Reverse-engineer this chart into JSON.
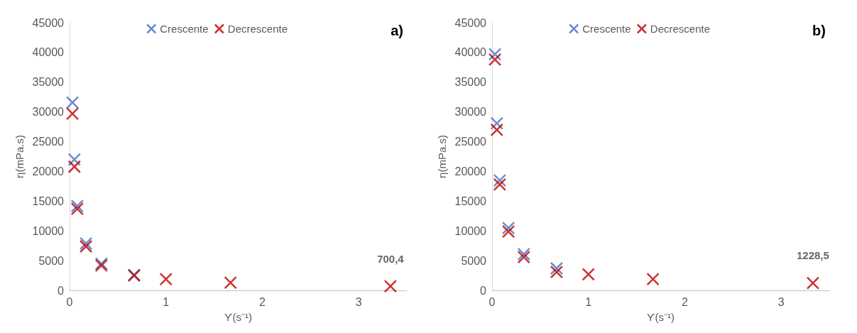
{
  "chart_data": [
    {
      "type": "scatter",
      "title": "a)",
      "xlabel": "ϒ(s⁻¹)",
      "ylabel": "η(mPa.s)",
      "x": [
        0.03,
        0.05,
        0.08,
        0.17,
        0.33,
        0.67,
        1,
        1.67,
        3.33
      ],
      "xlim": [
        0,
        3.5
      ],
      "xticks": [
        0,
        1,
        2,
        3
      ],
      "ylim": [
        0,
        45000
      ],
      "yticks": [
        0,
        5000,
        10000,
        15000,
        20000,
        25000,
        30000,
        35000,
        40000,
        45000
      ],
      "grid": false,
      "legend": "top",
      "marker": "cross",
      "series": [
        {
          "name": "Crescente",
          "color": "#4472c4",
          "values": [
            31600,
            22000,
            14200,
            7900,
            4500,
            2600,
            null,
            null,
            null
          ]
        },
        {
          "name": "Decrescente",
          "color": "#c00000",
          "values": [
            29700,
            20800,
            13700,
            7400,
            4200,
            2500,
            1900,
            1300,
            700.4
          ],
          "value_labels": [
            null,
            null,
            null,
            null,
            null,
            null,
            null,
            null,
            "700,4"
          ]
        }
      ]
    },
    {
      "type": "scatter",
      "title": "b)",
      "xlabel": "ϒ(s⁻¹)",
      "ylabel": "η(mPa.s)",
      "x": [
        0.03,
        0.05,
        0.08,
        0.17,
        0.33,
        0.67,
        1,
        1.67,
        3.33
      ],
      "xlim": [
        0,
        3.5
      ],
      "xticks": [
        0,
        1,
        2,
        3
      ],
      "ylim": [
        0,
        45000
      ],
      "yticks": [
        0,
        5000,
        10000,
        15000,
        20000,
        25000,
        30000,
        35000,
        40000,
        45000
      ],
      "grid": false,
      "legend": "top",
      "marker": "cross",
      "series": [
        {
          "name": "Crescente",
          "color": "#4472c4",
          "values": [
            39700,
            28100,
            18500,
            10500,
            6100,
            3700,
            null,
            null,
            null
          ]
        },
        {
          "name": "Decrescente",
          "color": "#c00000",
          "values": [
            38800,
            27000,
            17800,
            9900,
            5600,
            3100,
            2700,
            1900,
            1228.5
          ],
          "value_labels": [
            null,
            null,
            null,
            null,
            null,
            null,
            null,
            null,
            "1228,5"
          ]
        }
      ]
    }
  ]
}
